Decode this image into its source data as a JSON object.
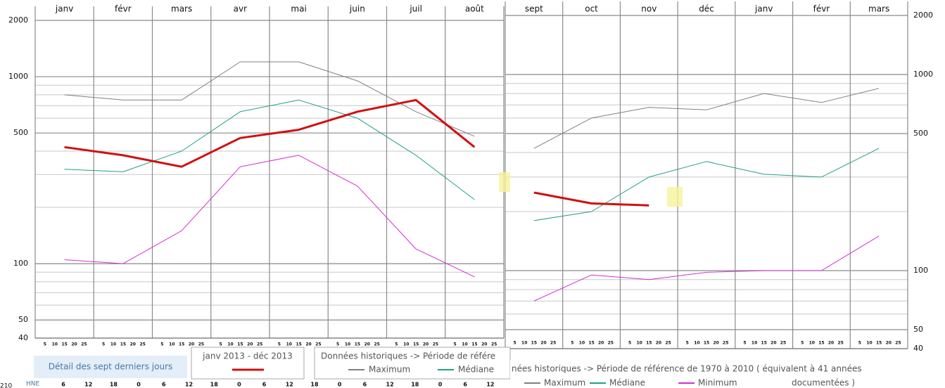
{
  "chart_data": [
    {
      "type": "line",
      "log_y": true,
      "yaxis_side": "left",
      "categories": [
        "janv",
        "févr",
        "mars",
        "avr",
        "mai",
        "juin",
        "juil",
        "août"
      ],
      "series": [
        {
          "name": "Maximum",
          "color": "#808080",
          "width": 1,
          "values": [
            800,
            750,
            750,
            1200,
            1200,
            950,
            650,
            480
          ]
        },
        {
          "name": "Médiane",
          "color": "#1fa088",
          "width": 1,
          "values": [
            320,
            310,
            400,
            650,
            750,
            600,
            380,
            220
          ]
        },
        {
          "name": "Minimum",
          "color": "#d030d0",
          "width": 1,
          "values": [
            105,
            100,
            150,
            330,
            380,
            260,
            120,
            85
          ]
        },
        {
          "name": "janv 2013 - déc 2013",
          "color": "#d01010",
          "width": 3,
          "values": [
            420,
            380,
            330,
            470,
            520,
            650,
            750,
            420
          ]
        }
      ],
      "ylim": [
        40,
        2000
      ],
      "yticks": [
        40,
        50,
        100,
        500,
        1000,
        2000
      ],
      "minor_grid": [
        60,
        70,
        80,
        90,
        200,
        300,
        400,
        600,
        700,
        800,
        900
      ],
      "day_ticks": [
        "5",
        "10",
        "15",
        "20",
        "25"
      ]
    },
    {
      "type": "line",
      "log_y": true,
      "yaxis_side": "right",
      "categories": [
        "sept",
        "oct",
        "nov",
        "déc",
        "janv",
        "févr",
        "mars"
      ],
      "series": [
        {
          "name": "Maximum",
          "color": "#808080",
          "width": 1,
          "values": [
            420,
            600,
            680,
            660,
            800,
            720,
            850
          ]
        },
        {
          "name": "Médiane",
          "color": "#1fa088",
          "width": 1,
          "values": [
            180,
            200,
            300,
            360,
            310,
            300,
            420
          ]
        },
        {
          "name": "Minimum",
          "color": "#d030d0",
          "width": 1,
          "values": [
            70,
            95,
            90,
            98,
            100,
            100,
            150
          ]
        },
        {
          "color": "#d01010",
          "width": 3,
          "values": [
            250,
            220,
            215,
            null,
            null,
            null,
            null
          ]
        }
      ],
      "ylim": [
        40,
        2000
      ],
      "yticks": [
        40,
        50,
        100,
        500,
        1000,
        2000
      ],
      "minor_grid": [
        60,
        70,
        80,
        90,
        200,
        300,
        400,
        600,
        700,
        800,
        900
      ],
      "day_ticks": [
        "5",
        "10",
        "15",
        "20",
        "25"
      ]
    }
  ],
  "controls": {
    "detail_button": "Détail des sept derniers jours",
    "clipped_label": "210",
    "hours_label": "HNE",
    "hours": [
      "6",
      "12",
      "18",
      "0",
      "6",
      "12",
      "18",
      "0",
      "6",
      "12",
      "18",
      "0",
      "6",
      "12",
      "18",
      "0",
      "6",
      "12"
    ]
  },
  "legend_left": {
    "historic": "Données historiques -> Période de référe"
  },
  "legend_right": {
    "historic": "nées historiques -> Période de référence  de 1970 à 2010   ( équivalent à 41 années",
    "historic_cont": "documentées )"
  }
}
